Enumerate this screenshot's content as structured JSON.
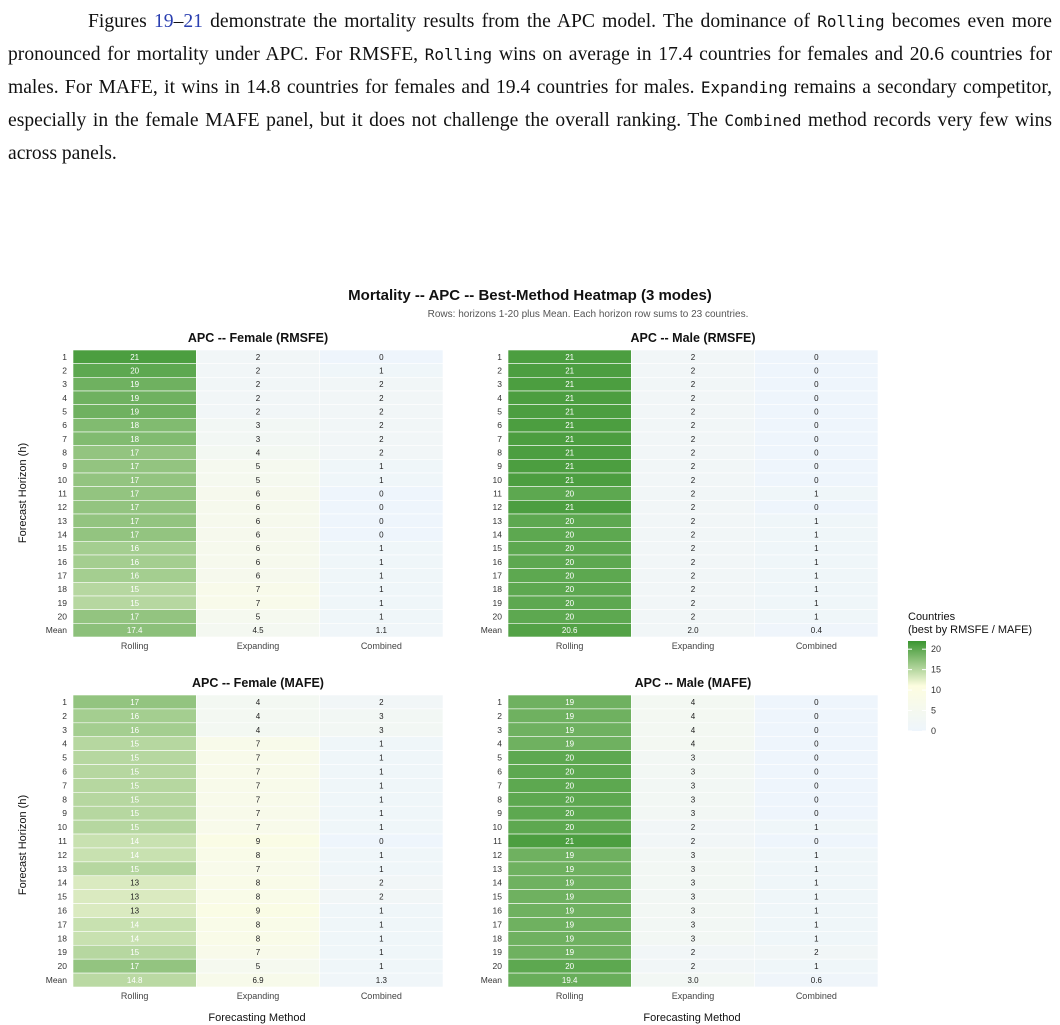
{
  "paragraph": [
    {
      "t": "Figures "
    },
    {
      "t": "19",
      "s": "ref"
    },
    {
      "t": "–"
    },
    {
      "t": "21",
      "s": "ref"
    },
    {
      "t": " demonstrate the mortality results from the APC model. The dominance of "
    },
    {
      "t": "Rolling",
      "s": "mono"
    },
    {
      "t": " becomes even more pronounced for mortality under APC. For RMSFE, "
    },
    {
      "t": "Rolling",
      "s": "mono"
    },
    {
      "t": " wins on average in 17.4 countries for females and 20.6 countries for males. For MAFE, it wins in 14.8 countries for females and 19.4 countries for males. "
    },
    {
      "t": "Expanding",
      "s": "mono"
    },
    {
      "t": " remains a secondary competitor, especially in the female MAFE panel, but it does not challenge the overall ranking. The "
    },
    {
      "t": "Combined",
      "s": "mono"
    },
    {
      "t": " method records very few wins across panels."
    }
  ],
  "figure": {
    "title": "Mortality -- APC -- Best-Method Heatmap (3 modes)",
    "subtitle": "Rows: horizons 1-20 plus Mean. Each horizon row sums to 23 countries.",
    "ylabel": "Forecast Horizon (h)",
    "xlabel": "Forecasting Method",
    "legend_title": [
      "Countries",
      "(best by RMSFE / MAFE)"
    ],
    "legend_ticks": [
      20,
      15,
      10,
      5,
      0
    ],
    "colors": {
      "low": "#eef5fc",
      "mid": "#fdfde0",
      "high": "#3a9530"
    }
  },
  "chart_data": [
    {
      "type": "heatmap",
      "title": "APC -- Female (RMSFE)",
      "categories": [
        "Rolling",
        "Expanding",
        "Combined"
      ],
      "rows": [
        "1",
        "2",
        "3",
        "4",
        "5",
        "6",
        "7",
        "8",
        "9",
        "10",
        "11",
        "12",
        "13",
        "14",
        "15",
        "16",
        "17",
        "18",
        "19",
        "20",
        "Mean"
      ],
      "values": [
        [
          21,
          2,
          0
        ],
        [
          20,
          2,
          1
        ],
        [
          19,
          2,
          2
        ],
        [
          19,
          2,
          2
        ],
        [
          19,
          2,
          2
        ],
        [
          18,
          3,
          2
        ],
        [
          18,
          3,
          2
        ],
        [
          17,
          4,
          2
        ],
        [
          17,
          5,
          1
        ],
        [
          17,
          5,
          1
        ],
        [
          17,
          6,
          0
        ],
        [
          17,
          6,
          0
        ],
        [
          17,
          6,
          0
        ],
        [
          17,
          6,
          0
        ],
        [
          16,
          6,
          1
        ],
        [
          16,
          6,
          1
        ],
        [
          16,
          6,
          1
        ],
        [
          15,
          7,
          1
        ],
        [
          15,
          7,
          1
        ],
        [
          17,
          5,
          1
        ],
        [
          "17.4",
          "4.5",
          "1.1"
        ]
      ]
    },
    {
      "type": "heatmap",
      "title": "APC -- Male (RMSFE)",
      "categories": [
        "Rolling",
        "Expanding",
        "Combined"
      ],
      "rows": [
        "1",
        "2",
        "3",
        "4",
        "5",
        "6",
        "7",
        "8",
        "9",
        "10",
        "11",
        "12",
        "13",
        "14",
        "15",
        "16",
        "17",
        "18",
        "19",
        "20",
        "Mean"
      ],
      "values": [
        [
          21,
          2,
          0
        ],
        [
          21,
          2,
          0
        ],
        [
          21,
          2,
          0
        ],
        [
          21,
          2,
          0
        ],
        [
          21,
          2,
          0
        ],
        [
          21,
          2,
          0
        ],
        [
          21,
          2,
          0
        ],
        [
          21,
          2,
          0
        ],
        [
          21,
          2,
          0
        ],
        [
          21,
          2,
          0
        ],
        [
          20,
          2,
          1
        ],
        [
          21,
          2,
          0
        ],
        [
          20,
          2,
          1
        ],
        [
          20,
          2,
          1
        ],
        [
          20,
          2,
          1
        ],
        [
          20,
          2,
          1
        ],
        [
          20,
          2,
          1
        ],
        [
          20,
          2,
          1
        ],
        [
          20,
          2,
          1
        ],
        [
          20,
          2,
          1
        ],
        [
          "20.6",
          "2.0",
          "0.4"
        ]
      ]
    },
    {
      "type": "heatmap",
      "title": "APC -- Female (MAFE)",
      "categories": [
        "Rolling",
        "Expanding",
        "Combined"
      ],
      "rows": [
        "1",
        "2",
        "3",
        "4",
        "5",
        "6",
        "7",
        "8",
        "9",
        "10",
        "11",
        "12",
        "13",
        "14",
        "15",
        "16",
        "17",
        "18",
        "19",
        "20",
        "Mean"
      ],
      "values": [
        [
          17,
          4,
          2
        ],
        [
          16,
          4,
          3
        ],
        [
          16,
          4,
          3
        ],
        [
          15,
          7,
          1
        ],
        [
          15,
          7,
          1
        ],
        [
          15,
          7,
          1
        ],
        [
          15,
          7,
          1
        ],
        [
          15,
          7,
          1
        ],
        [
          15,
          7,
          1
        ],
        [
          15,
          7,
          1
        ],
        [
          14,
          9,
          0
        ],
        [
          14,
          8,
          1
        ],
        [
          15,
          7,
          1
        ],
        [
          13,
          8,
          2
        ],
        [
          13,
          8,
          2
        ],
        [
          13,
          9,
          1
        ],
        [
          14,
          8,
          1
        ],
        [
          14,
          8,
          1
        ],
        [
          15,
          7,
          1
        ],
        [
          17,
          5,
          1
        ],
        [
          "14.8",
          "6.9",
          "1.3"
        ]
      ]
    },
    {
      "type": "heatmap",
      "title": "APC -- Male (MAFE)",
      "categories": [
        "Rolling",
        "Expanding",
        "Combined"
      ],
      "rows": [
        "1",
        "2",
        "3",
        "4",
        "5",
        "6",
        "7",
        "8",
        "9",
        "10",
        "11",
        "12",
        "13",
        "14",
        "15",
        "16",
        "17",
        "18",
        "19",
        "20",
        "Mean"
      ],
      "values": [
        [
          19,
          4,
          0
        ],
        [
          19,
          4,
          0
        ],
        [
          19,
          4,
          0
        ],
        [
          19,
          4,
          0
        ],
        [
          20,
          3,
          0
        ],
        [
          20,
          3,
          0
        ],
        [
          20,
          3,
          0
        ],
        [
          20,
          3,
          0
        ],
        [
          20,
          3,
          0
        ],
        [
          20,
          2,
          1
        ],
        [
          21,
          2,
          0
        ],
        [
          19,
          3,
          1
        ],
        [
          19,
          3,
          1
        ],
        [
          19,
          3,
          1
        ],
        [
          19,
          3,
          1
        ],
        [
          19,
          3,
          1
        ],
        [
          19,
          3,
          1
        ],
        [
          19,
          3,
          1
        ],
        [
          19,
          2,
          2
        ],
        [
          20,
          2,
          1
        ],
        [
          "19.4",
          "3.0",
          "0.6"
        ]
      ]
    }
  ]
}
